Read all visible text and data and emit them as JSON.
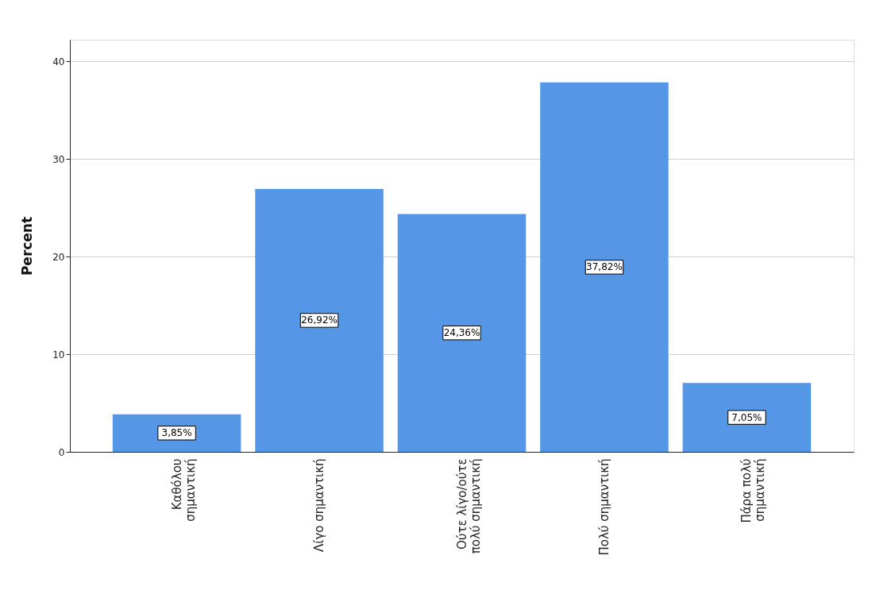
{
  "chart_data": {
    "type": "bar",
    "ylabel": "Percent",
    "categories": [
      "Καθόλου\nσημαντική",
      "Λίγο σημαντική",
      "Ούτε λίγο/ούτε\nπολύ σημαντική",
      "Πολύ σημαντική",
      "Πάρα πολύ\nσημαντική"
    ],
    "values": [
      3.85,
      26.92,
      24.36,
      37.82,
      7.05
    ],
    "value_labels": [
      "3,85%",
      "26,92%",
      "24,36%",
      "37,82%",
      "7,05%"
    ],
    "color": "#5596e6",
    "ylim": [
      0,
      42.2
    ],
    "yticks": [
      0,
      10,
      20,
      30,
      40
    ],
    "grid": "y"
  }
}
